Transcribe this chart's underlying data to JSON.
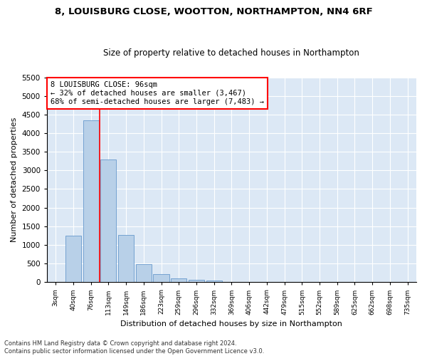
{
  "title1": "8, LOUISBURG CLOSE, WOOTTON, NORTHAMPTON, NN4 6RF",
  "title2": "Size of property relative to detached houses in Northampton",
  "xlabel": "Distribution of detached houses by size in Northampton",
  "ylabel": "Number of detached properties",
  "footnote": "Contains HM Land Registry data © Crown copyright and database right 2024.\nContains public sector information licensed under the Open Government Licence v3.0.",
  "categories": [
    "3sqm",
    "40sqm",
    "76sqm",
    "113sqm",
    "149sqm",
    "186sqm",
    "223sqm",
    "259sqm",
    "296sqm",
    "332sqm",
    "369sqm",
    "406sqm",
    "442sqm",
    "479sqm",
    "515sqm",
    "552sqm",
    "589sqm",
    "625sqm",
    "662sqm",
    "698sqm",
    "735sqm"
  ],
  "values": [
    0,
    1250,
    4350,
    3300,
    1270,
    480,
    220,
    100,
    70,
    50,
    0,
    0,
    0,
    0,
    0,
    0,
    0,
    0,
    0,
    0,
    0
  ],
  "bar_color": "#b8d0e8",
  "bar_edge_color": "#6699cc",
  "vline_x": 2.5,
  "vline_color": "red",
  "annotation_text": "8 LOUISBURG CLOSE: 96sqm\n← 32% of detached houses are smaller (3,467)\n68% of semi-detached houses are larger (7,483) →",
  "annotation_box_color": "white",
  "annotation_box_edge": "red",
  "ylim": [
    0,
    5500
  ],
  "yticks": [
    0,
    500,
    1000,
    1500,
    2000,
    2500,
    3000,
    3500,
    4000,
    4500,
    5000,
    5500
  ],
  "bg_color": "#dce8f5",
  "title1_fontsize": 9.5,
  "title2_fontsize": 8.5
}
